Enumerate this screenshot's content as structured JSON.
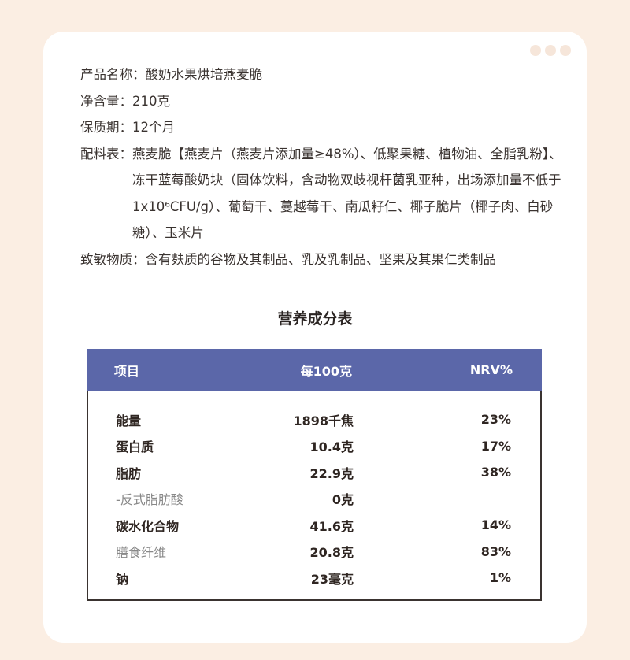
{
  "info": {
    "name_label": "产品名称：",
    "name": "酸奶水果烘培燕麦脆",
    "net_label": "净含量：",
    "net": "210克",
    "shelf_label": "保质期：",
    "shelf": "12个月",
    "ingredients_label": "配料表：",
    "ingredients": "燕麦脆【燕麦片（燕麦片添加量≥48%）、低聚果糖、植物油、全脂乳粉】、冻干蓝莓酸奶块（固体饮料，含动物双歧视杆菌乳亚种，出场添加量不低于1x10⁶CFU/g）、葡萄干、蔓越莓干、南瓜籽仁、椰子脆片（椰子肉、白砂糖）、玉米片",
    "allergen_label": "致敏物质：",
    "allergen": "含有麸质的谷物及其制品、乳及乳制品、坚果及其果仁类制品"
  },
  "nutrition": {
    "title": "营养成分表",
    "headers": [
      "项目",
      "每100克",
      "NRV%"
    ],
    "rows": [
      {
        "item": "能量",
        "value": "1898千焦",
        "nrv": "23%"
      },
      {
        "item": "蛋白质",
        "value": "10.4克",
        "nrv": "17%"
      },
      {
        "item": "脂肪",
        "value": "22.9克",
        "nrv": "38%"
      },
      {
        "item": "-反式脂肪酸",
        "value": "0克",
        "nrv": ""
      },
      {
        "item": "碳水化合物",
        "value": "41.6克",
        "nrv": "14%"
      },
      {
        "item": "膳食纤维",
        "value": "20.8克",
        "nrv": "83%"
      },
      {
        "item": "钠",
        "value": "23毫克",
        "nrv": "1%"
      }
    ],
    "header_color": "#5b67a9"
  }
}
